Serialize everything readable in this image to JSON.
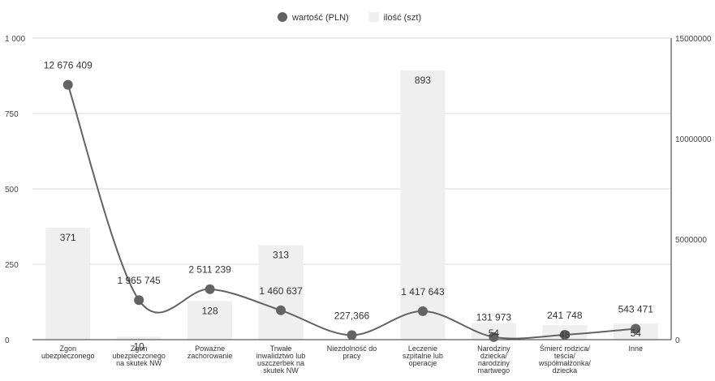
{
  "chart_data": {
    "type": "bar",
    "legend": {
      "placement": "top-center",
      "items": [
        {
          "label": "wartość (PLN)",
          "marker": "circle",
          "color": "#636363"
        },
        {
          "label": "ilość (szt)",
          "marker": "square",
          "color": "#efefef"
        }
      ]
    },
    "categories": [
      [
        "Zgon",
        "ubezpieczonego"
      ],
      [
        "Zgon",
        "ubezpieczonego",
        "na skutek NW"
      ],
      [
        "Poważne",
        "zachorowanie"
      ],
      [
        "Trwałe",
        "inwalidztwo lub",
        "uszczerbek na",
        "skutek NW"
      ],
      [
        "Niezdolność do",
        "pracy"
      ],
      [
        "Leczenie",
        "szpitalne lub",
        "operacje"
      ],
      [
        "Narodziny",
        "dziecka/",
        "narodziny",
        "martwego"
      ],
      [
        "Śmierć rodzica/",
        "teścia/",
        "współmałżonka/",
        "dziecka"
      ],
      [
        "Inne"
      ]
    ],
    "series": [
      {
        "name": "ilość (szt)",
        "type": "bar",
        "axis": "left",
        "color": "#efefef",
        "values": [
          371,
          10,
          128,
          313,
          0,
          893,
          54,
          48,
          54
        ],
        "labels": [
          "371",
          "10",
          "128",
          "313",
          "",
          "893",
          "54",
          "48",
          "54"
        ]
      },
      {
        "name": "wartość (PLN)",
        "type": "line",
        "smooth": true,
        "axis": "right",
        "color": "#636363",
        "values": [
          12676409,
          1965745,
          2511239,
          1460637,
          227366,
          1417643,
          131973,
          241748,
          543471
        ],
        "labels": [
          "12 676 409",
          "1 965 745",
          "2 511 239",
          "1 460 637",
          "227,366",
          "1 417 643",
          "131 973",
          "241 748",
          "543 471"
        ]
      }
    ],
    "y_left": {
      "range": [
        0,
        1000
      ],
      "ticks": [
        0,
        250,
        500,
        750,
        1000
      ],
      "tick_labels": [
        "0",
        "250",
        "500",
        "750",
        "1 000"
      ]
    },
    "y_right": {
      "range": [
        0,
        15000000
      ],
      "ticks": [
        0,
        5000000,
        10000000,
        15000000
      ],
      "tick_labels": [
        "0",
        "5000000",
        "10000000",
        "15000000"
      ]
    },
    "grid": true
  }
}
